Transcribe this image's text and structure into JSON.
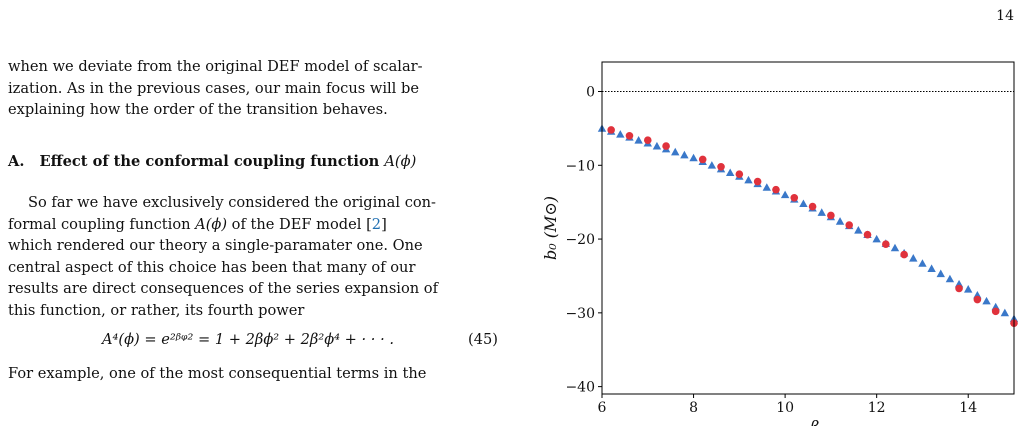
{
  "page": {
    "number": "14"
  },
  "text": {
    "intro_lines": [
      "when we deviate from the original DEF model of scalar-",
      "ization. As in the previous cases, our main focus will be",
      "explaining how the order of the transition behaves."
    ],
    "section": {
      "number": "A.",
      "title": "Effect of the conformal coupling function",
      "func": "A(ϕ)"
    },
    "para1": {
      "line1_prefix": "So far we have exclusively considered the original con-",
      "line2_a": "formal coupling function ",
      "line2_func": "A(ϕ)",
      "line2_b": " of the DEF model [",
      "line2_ref": "2",
      "line2_c": "]",
      "rest_lines": [
        "which rendered our theory a single-paramater one. One",
        "central aspect of this choice has been that many of our",
        "results are direct consequences of the series expansion of",
        "this function, or rather, its fourth power"
      ]
    },
    "equation": {
      "expr": "A⁴(ϕ) = e²ᵝᵠ² = 1 + 2βϕ² + 2β²ϕ⁴ + · · · .",
      "number": "(45)"
    },
    "para2_line": "For example, one of the most consequential terms in the"
  },
  "chart_data": {
    "type": "scatter",
    "xlabel": "−β",
    "ylabel": "b₀ (M⊙)",
    "xlim": [
      6,
      15
    ],
    "ylim": [
      -41,
      4
    ],
    "xticks": [
      6,
      8,
      10,
      12,
      14
    ],
    "xtick_labels": [
      "6",
      "8",
      "10",
      "12",
      "14"
    ],
    "yticks": [
      0,
      -10,
      -20,
      -30,
      -40
    ],
    "ytick_labels": [
      "0",
      "−10",
      "−20",
      "−30",
      "−40"
    ],
    "reference_line": {
      "y": 0,
      "style": "dotted",
      "color": "#000000"
    },
    "series": [
      {
        "marker": "triangle",
        "color": "#3a78c9",
        "x": [
          6.0,
          6.2,
          6.4,
          6.6,
          6.8,
          7.0,
          7.2,
          7.4,
          7.6,
          7.8,
          8.0,
          8.2,
          8.4,
          8.6,
          8.8,
          9.0,
          9.2,
          9.4,
          9.6,
          9.8,
          10.0,
          10.2,
          10.4,
          10.6,
          10.8,
          11.0,
          11.2,
          11.4,
          11.6,
          11.8,
          12.0,
          12.2,
          12.4,
          12.6,
          12.8,
          13.0,
          13.2,
          13.4,
          13.6,
          13.8,
          14.0,
          14.2,
          14.4,
          14.6,
          14.8,
          15.0
        ],
        "y": [
          -5.0,
          -5.4,
          -5.8,
          -6.2,
          -6.6,
          -7.0,
          -7.4,
          -7.8,
          -8.2,
          -8.6,
          -9.0,
          -9.5,
          -10.0,
          -10.5,
          -11.0,
          -11.5,
          -12.0,
          -12.5,
          -13.0,
          -13.5,
          -14.0,
          -14.6,
          -15.2,
          -15.8,
          -16.4,
          -17.0,
          -17.6,
          -18.2,
          -18.8,
          -19.4,
          -20.0,
          -20.6,
          -21.2,
          -21.9,
          -22.6,
          -23.3,
          -24.0,
          -24.7,
          -25.4,
          -26.1,
          -26.8,
          -27.6,
          -28.4,
          -29.2,
          -30.0,
          -30.8
        ]
      },
      {
        "marker": "circle",
        "color": "#e0323c",
        "x": [
          6.2,
          6.6,
          7.0,
          7.4,
          8.2,
          8.6,
          9.0,
          9.4,
          9.8,
          10.2,
          10.6,
          11.0,
          11.4,
          11.8,
          12.2,
          12.6,
          13.8,
          14.2,
          14.6,
          15.0
        ],
        "y": [
          -5.2,
          -6.0,
          -6.6,
          -7.4,
          -9.2,
          -10.2,
          -11.2,
          -12.2,
          -13.3,
          -14.4,
          -15.6,
          -16.8,
          -18.1,
          -19.4,
          -20.7,
          -22.1,
          -26.7,
          -28.2,
          -29.8,
          -31.4
        ]
      }
    ]
  }
}
